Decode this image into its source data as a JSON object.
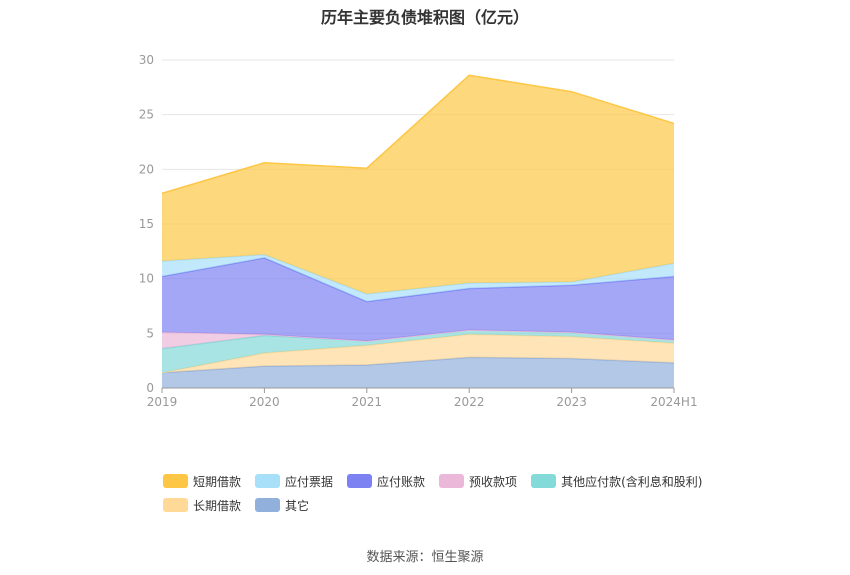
{
  "title": "历年主要负债堆积图（亿元）",
  "source": "数据来源：恒生聚源",
  "chart_data": {
    "type": "area",
    "stacked": true,
    "x": [
      "2019",
      "2020",
      "2021",
      "2022",
      "2023",
      "2024H1"
    ],
    "ylim": [
      0,
      30
    ],
    "yticks": [
      0,
      5,
      10,
      15,
      20,
      25,
      30
    ],
    "grid": true,
    "legend_position": "bottom",
    "series": [
      {
        "name": "其它",
        "values": [
          1.4,
          2.0,
          2.1,
          2.8,
          2.7,
          2.3
        ],
        "color": "#92b0dc"
      },
      {
        "name": "长期借款",
        "values": [
          0.0,
          1.2,
          1.8,
          2.1,
          2.0,
          1.8
        ],
        "color": "#ffd998"
      },
      {
        "name": "其他应付款(含利息和股利)",
        "values": [
          2.2,
          1.6,
          0.4,
          0.4,
          0.4,
          0.3
        ],
        "color": "#84d9d9"
      },
      {
        "name": "预收款项",
        "values": [
          1.5,
          0.1,
          0.0,
          0.0,
          0.0,
          0.0
        ],
        "color": "#ebb8d9"
      },
      {
        "name": "应付账款",
        "values": [
          5.1,
          7.0,
          3.6,
          3.8,
          4.3,
          5.8
        ],
        "color": "#7d82f2"
      },
      {
        "name": "应付票据",
        "values": [
          1.4,
          0.3,
          0.7,
          0.5,
          0.3,
          1.2
        ],
        "color": "#a8e0fa"
      },
      {
        "name": "短期借款",
        "values": [
          6.2,
          8.4,
          11.5,
          19.0,
          17.4,
          12.8
        ],
        "color": "#fdc745"
      }
    ],
    "legend_order": [
      "短期借款",
      "应付票据",
      "应付账款",
      "预收款项",
      "其他应付款(含利息和股利)",
      "长期借款",
      "其它"
    ]
  }
}
